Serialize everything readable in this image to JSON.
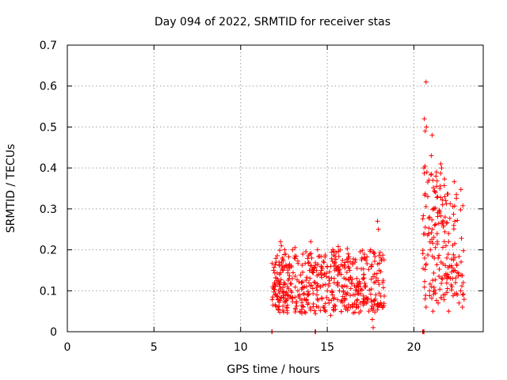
{
  "chart_data": {
    "type": "scatter",
    "title": "Day 094 of 2022, SRMTID for receiver stas",
    "xlabel": "GPS time / hours",
    "ylabel": "SRMTID / TECUs",
    "xlim": [
      0,
      24.0
    ],
    "ylim": [
      0,
      0.7
    ],
    "xticks": [
      0,
      5,
      10,
      15,
      20
    ],
    "xtick_labels": [
      "0",
      "5",
      "10",
      "15",
      "20"
    ],
    "yticks": [
      0,
      0.1,
      0.2,
      0.3,
      0.4,
      0.5,
      0.6,
      0.7
    ],
    "ytick_labels": [
      "0",
      "0.1",
      "0.2",
      "0.3",
      "0.4",
      "0.5",
      "0.6",
      "0.7"
    ],
    "grid": true,
    "marker": "+",
    "marker_color": "#ff0000",
    "series": [
      {
        "name": "SRMTID",
        "clusters": [
          {
            "x_range": [
              11.8,
              18.3
            ],
            "y_typical": [
              0.05,
              0.2
            ],
            "y_max": 0.27
          },
          {
            "x_range": [
              20.5,
              22.9
            ],
            "y_typical": [
              0.08,
              0.4
            ],
            "y_max": 0.61
          }
        ],
        "points": [
          [
            11.8,
            0.0
          ],
          [
            11.82,
            0.0
          ],
          [
            14.3,
            0.0
          ],
          [
            14.33,
            0.0
          ],
          [
            20.5,
            0.0
          ],
          [
            20.55,
            0.0
          ],
          [
            20.58,
            0.0
          ],
          [
            11.9,
            0.15
          ],
          [
            11.95,
            0.12
          ],
          [
            12.0,
            0.09
          ],
          [
            12.05,
            0.17
          ],
          [
            12.1,
            0.13
          ],
          [
            12.15,
            0.06
          ],
          [
            12.2,
            0.1
          ],
          [
            12.25,
            0.14
          ],
          [
            12.3,
            0.22
          ],
          [
            12.35,
            0.21
          ],
          [
            12.4,
            0.18
          ],
          [
            12.45,
            0.15
          ],
          [
            12.5,
            0.12
          ],
          [
            12.55,
            0.2
          ],
          [
            12.6,
            0.09
          ],
          [
            12.7,
            0.11
          ],
          [
            12.8,
            0.13
          ],
          [
            12.9,
            0.1
          ],
          [
            13.0,
            0.2
          ],
          [
            13.1,
            0.18
          ],
          [
            13.2,
            0.07
          ],
          [
            13.3,
            0.1
          ],
          [
            13.4,
            0.09
          ],
          [
            13.5,
            0.12
          ],
          [
            13.6,
            0.06
          ],
          [
            13.7,
            0.08
          ],
          [
            13.8,
            0.11
          ],
          [
            13.9,
            0.07
          ],
          [
            14.0,
            0.13
          ],
          [
            14.05,
            0.22
          ],
          [
            14.1,
            0.18
          ],
          [
            14.2,
            0.15
          ],
          [
            14.3,
            0.12
          ],
          [
            14.4,
            0.09
          ],
          [
            14.5,
            0.14
          ],
          [
            14.6,
            0.11
          ],
          [
            14.7,
            0.08
          ],
          [
            14.8,
            0.06
          ],
          [
            14.9,
            0.05
          ],
          [
            15.0,
            0.1
          ],
          [
            15.1,
            0.07
          ],
          [
            15.2,
            0.04
          ],
          [
            15.3,
            0.09
          ],
          [
            15.4,
            0.13
          ],
          [
            15.5,
            0.16
          ],
          [
            15.6,
            0.12
          ],
          [
            15.7,
            0.1
          ],
          [
            15.8,
            0.14
          ],
          [
            15.9,
            0.11
          ],
          [
            16.0,
            0.08
          ],
          [
            16.1,
            0.06
          ],
          [
            16.2,
            0.19
          ],
          [
            16.3,
            0.15
          ],
          [
            16.4,
            0.12
          ],
          [
            16.5,
            0.09
          ],
          [
            16.6,
            0.17
          ],
          [
            16.7,
            0.13
          ],
          [
            16.8,
            0.1
          ],
          [
            16.9,
            0.07
          ],
          [
            17.0,
            0.18
          ],
          [
            17.1,
            0.14
          ],
          [
            17.2,
            0.11
          ],
          [
            17.3,
            0.08
          ],
          [
            17.4,
            0.05
          ],
          [
            17.5,
            0.2
          ],
          [
            17.55,
            0.16
          ],
          [
            17.6,
            0.03
          ],
          [
            17.65,
            0.01
          ],
          [
            17.7,
            0.12
          ],
          [
            17.8,
            0.09
          ],
          [
            17.9,
            0.27
          ],
          [
            17.95,
            0.25
          ],
          [
            18.0,
            0.15
          ],
          [
            18.1,
            0.18
          ],
          [
            18.2,
            0.12
          ],
          [
            20.6,
            0.52
          ],
          [
            20.65,
            0.49
          ],
          [
            20.7,
            0.61
          ],
          [
            20.72,
            0.5
          ],
          [
            20.75,
            0.39
          ],
          [
            20.8,
            0.33
          ],
          [
            20.85,
            0.24
          ],
          [
            20.9,
            0.28
          ],
          [
            20.95,
            0.2
          ],
          [
            21.0,
            0.43
          ],
          [
            21.05,
            0.48
          ],
          [
            21.1,
            0.37
          ],
          [
            21.15,
            0.3
          ],
          [
            21.2,
            0.26
          ],
          [
            21.25,
            0.34
          ],
          [
            21.3,
            0.39
          ],
          [
            21.35,
            0.22
          ],
          [
            21.4,
            0.18
          ],
          [
            21.45,
            0.29
          ],
          [
            21.5,
            0.35
          ],
          [
            21.55,
            0.41
          ],
          [
            21.6,
            0.4
          ],
          [
            21.65,
            0.31
          ],
          [
            21.7,
            0.26
          ],
          [
            21.75,
            0.22
          ],
          [
            21.8,
            0.28
          ],
          [
            21.85,
            0.21
          ],
          [
            21.9,
            0.18
          ],
          [
            21.95,
            0.14
          ],
          [
            22.0,
            0.24
          ],
          [
            22.05,
            0.16
          ],
          [
            22.1,
            0.13
          ],
          [
            22.2,
            0.11
          ],
          [
            22.3,
            0.15
          ],
          [
            22.4,
            0.12
          ],
          [
            22.5,
            0.09
          ],
          [
            22.6,
            0.07
          ],
          [
            22.7,
            0.1
          ],
          [
            22.8,
            0.06
          ],
          [
            22.85,
            0.12
          ],
          [
            20.65,
            0.08
          ],
          [
            20.7,
            0.06
          ],
          [
            20.9,
            0.1
          ],
          [
            21.1,
            0.05
          ],
          [
            21.4,
            0.07
          ],
          [
            21.7,
            0.09
          ],
          [
            22.0,
            0.05
          ]
        ]
      }
    ]
  }
}
